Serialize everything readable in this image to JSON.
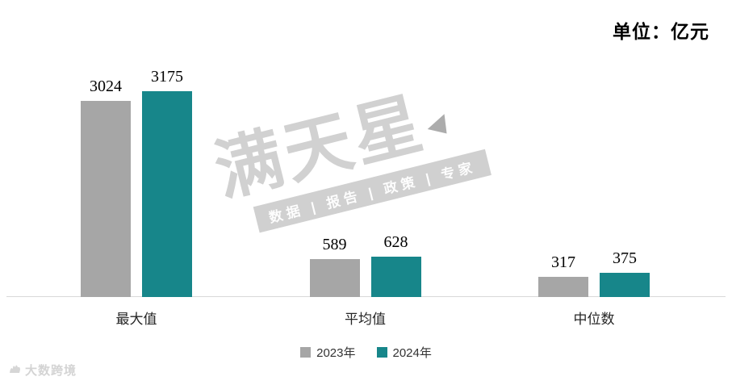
{
  "unit_label": "单位：亿元",
  "watermark": {
    "brand": "满天星",
    "tagline": "数据 | 报告 | 政策 | 专家",
    "footer_logo": "大数跨境"
  },
  "legend": [
    {
      "label": "2023年",
      "color": "#a6a6a6"
    },
    {
      "label": "2024年",
      "color": "#17868a"
    }
  ],
  "chart_data": {
    "type": "bar",
    "title": "",
    "unit": "亿元",
    "categories": [
      "最大值",
      "平均值",
      "中位数"
    ],
    "series": [
      {
        "name": "2023年",
        "color": "#a6a6a6",
        "values": [
          3024,
          589,
          317
        ]
      },
      {
        "name": "2024年",
        "color": "#17868a",
        "values": [
          3175,
          628,
          375
        ]
      }
    ],
    "ylim": [
      0,
      3175
    ],
    "grid": false,
    "legend_position": "bottom",
    "value_labels": true
  }
}
